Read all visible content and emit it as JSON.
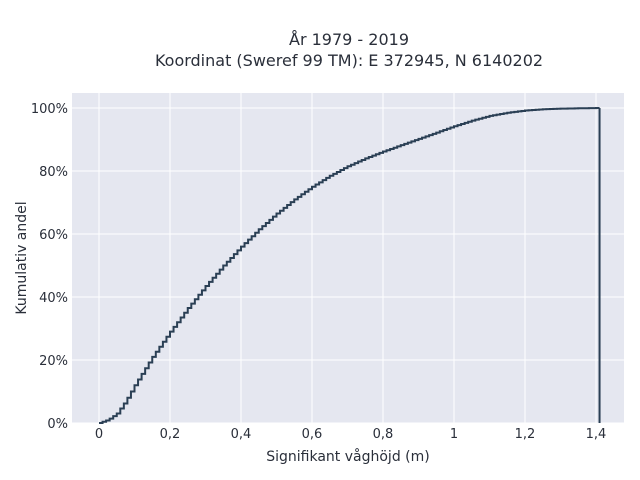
{
  "chart_data": {
    "type": "line",
    "subtype": "cumulative-step",
    "title": [
      "År 1979 - 2019",
      "Koordinat (Sweref 99 TM): E 372945, N 6140202"
    ],
    "xlabel": "Signifikant våghöjd (m)",
    "ylabel": "Kumulativ andel",
    "xlim": [
      -0.08,
      1.48
    ],
    "ylim": [
      0,
      1.05
    ],
    "x_ticks": [
      0,
      0.2,
      0.4,
      0.6,
      0.8,
      1,
      1.2,
      1.4
    ],
    "x_tick_labels": [
      "0",
      "0,2",
      "0,4",
      "0,6",
      "0,8",
      "1",
      "1,2",
      "1,4"
    ],
    "y_ticks": [
      0,
      0.2,
      0.4,
      0.6,
      0.8,
      1
    ],
    "y_tick_labels": [
      "0%",
      "20%",
      "40%",
      "60%",
      "80%",
      "100%"
    ],
    "grid": true,
    "colors": {
      "line": "#2a3f54",
      "plot_bg": "#e5e7f0",
      "grid": "#ffffff"
    },
    "series": [
      {
        "x": [
          0,
          0.025,
          0.05,
          0.075,
          0.1,
          0.125,
          0.15,
          0.2,
          0.25,
          0.3,
          0.35,
          0.4,
          0.45,
          0.5,
          0.55,
          0.6,
          0.65,
          0.7,
          0.75,
          0.8,
          0.85,
          0.9,
          0.95,
          1.0,
          1.05,
          1.1,
          1.15,
          1.2,
          1.25,
          1.3,
          1.35,
          1.41
        ],
        "y": [
          0,
          0.01,
          0.03,
          0.07,
          0.12,
          0.165,
          0.21,
          0.29,
          0.365,
          0.435,
          0.5,
          0.56,
          0.615,
          0.665,
          0.71,
          0.75,
          0.785,
          0.815,
          0.84,
          0.862,
          0.882,
          0.902,
          0.922,
          0.942,
          0.96,
          0.975,
          0.985,
          0.992,
          0.996,
          0.998,
          0.999,
          1.0
        ]
      }
    ]
  }
}
